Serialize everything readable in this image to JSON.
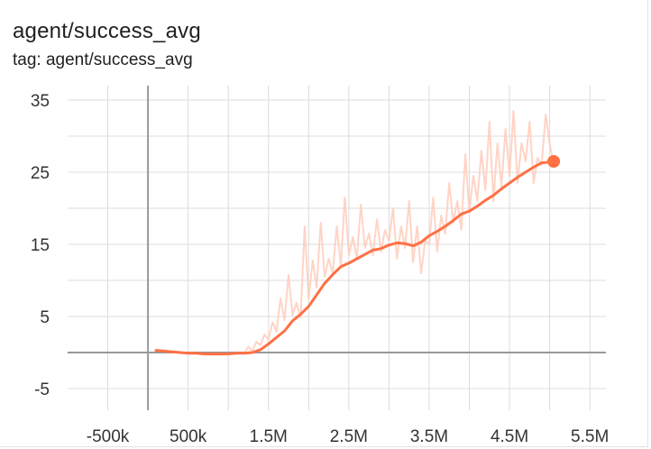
{
  "header": {
    "title": "agent/success_avg",
    "tag": "tag: agent/success_avg"
  },
  "colors": {
    "smoothed": "#ff7043",
    "raw": "#ffccbc",
    "grid": "#dcdcdc",
    "axis_zero": "#999999"
  },
  "chart_data": {
    "type": "line",
    "title": "agent/success_avg",
    "xlabel": "",
    "ylabel": "",
    "xlim": [
      -1000000,
      5700000
    ],
    "ylim": [
      -8,
      37
    ],
    "x_ticks": [
      "-500k",
      "500k",
      "1.5M",
      "2.5M",
      "3.5M",
      "4.5M",
      "5.5M"
    ],
    "x_tick_values": [
      -500000,
      500000,
      1500000,
      2500000,
      3500000,
      4500000,
      5500000
    ],
    "y_ticks": [
      "35",
      "25",
      "15",
      "5",
      "-5"
    ],
    "y_tick_values": [
      35,
      25,
      15,
      5,
      -5
    ],
    "grid": true,
    "last_point_marker": true,
    "series": [
      {
        "role": "smoothed",
        "x": [
          100000,
          200000,
          300000,
          400000,
          500000,
          600000,
          700000,
          800000,
          900000,
          1000000,
          1100000,
          1200000,
          1300000,
          1400000,
          1500000,
          1600000,
          1700000,
          1800000,
          1900000,
          2000000,
          2100000,
          2200000,
          2300000,
          2400000,
          2500000,
          2600000,
          2700000,
          2800000,
          2900000,
          3000000,
          3100000,
          3200000,
          3300000,
          3400000,
          3500000,
          3600000,
          3700000,
          3800000,
          3900000,
          4000000,
          4100000,
          4200000,
          4300000,
          4400000,
          4500000,
          4600000,
          4700000,
          4800000,
          4900000,
          5000000,
          5050000
        ],
        "values": [
          0.3,
          0.2,
          0.1,
          0,
          -0.1,
          -0.1,
          -0.2,
          -0.2,
          -0.2,
          -0.2,
          -0.1,
          -0.1,
          0,
          0.4,
          1.2,
          2.1,
          3.0,
          4.4,
          5.3,
          6.4,
          8.0,
          9.6,
          10.8,
          11.9,
          12.4,
          13.0,
          13.6,
          14.2,
          14.4,
          14.9,
          15.2,
          15.1,
          14.8,
          15.3,
          16.2,
          16.8,
          17.5,
          18.3,
          19.2,
          19.6,
          20.3,
          21.1,
          21.8,
          22.7,
          23.5,
          24.3,
          25.0,
          25.7,
          26.3,
          26.4,
          26.5
        ]
      },
      {
        "role": "raw",
        "x": [
          1200000,
          1250000,
          1300000,
          1350000,
          1400000,
          1450000,
          1500000,
          1550000,
          1600000,
          1650000,
          1700000,
          1750000,
          1800000,
          1850000,
          1900000,
          1950000,
          2000000,
          2050000,
          2100000,
          2150000,
          2200000,
          2250000,
          2300000,
          2350000,
          2400000,
          2450000,
          2500000,
          2550000,
          2600000,
          2650000,
          2700000,
          2750000,
          2800000,
          2850000,
          2900000,
          2950000,
          3000000,
          3050000,
          3100000,
          3150000,
          3200000,
          3250000,
          3300000,
          3350000,
          3400000,
          3450000,
          3500000,
          3550000,
          3600000,
          3650000,
          3700000,
          3750000,
          3800000,
          3850000,
          3900000,
          3950000,
          4000000,
          4050000,
          4100000,
          4150000,
          4200000,
          4250000,
          4300000,
          4350000,
          4400000,
          4450000,
          4500000,
          4550000,
          4600000,
          4650000,
          4700000,
          4750000,
          4800000,
          4850000,
          4900000,
          4950000,
          5000000,
          5050000
        ],
        "values": [
          0,
          0.8,
          0.2,
          1.5,
          1.0,
          2.5,
          1.8,
          4.2,
          2.9,
          7.5,
          4.5,
          10.8,
          5.2,
          6.9,
          4.8,
          17.5,
          7.4,
          12.8,
          9.0,
          18.0,
          10.5,
          13.0,
          11.0,
          17.5,
          12.0,
          21.5,
          13.5,
          16.0,
          13.0,
          20.5,
          14.5,
          16.5,
          13.5,
          18.5,
          14.0,
          17.0,
          15.5,
          20.0,
          13.0,
          17.5,
          14.5,
          21.0,
          12.5,
          17.5,
          11.0,
          15.5,
          15.0,
          21.5,
          14.0,
          19.0,
          16.5,
          23.5,
          18.0,
          21.0,
          17.0,
          27.5,
          19.5,
          24.5,
          21.0,
          28.0,
          22.5,
          32.0,
          21.0,
          29.0,
          23.0,
          31.0,
          24.5,
          33.5,
          23.5,
          29.0,
          26.5,
          32.0,
          23.5,
          27.0,
          26.0,
          33.0,
          29.0,
          26.0
        ]
      }
    ]
  }
}
